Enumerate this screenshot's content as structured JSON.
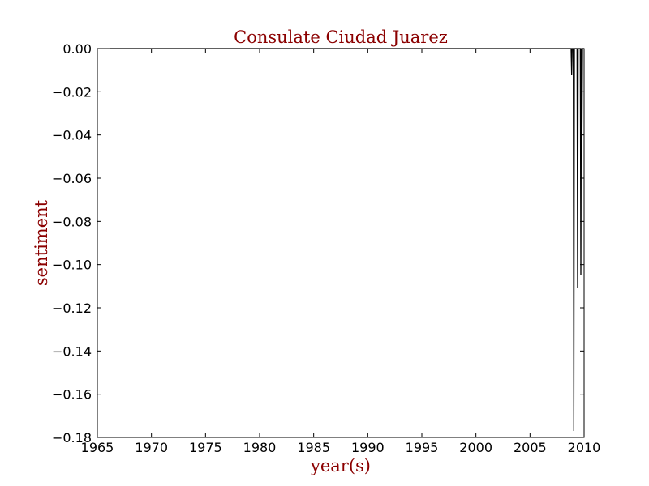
{
  "chart_data": {
    "type": "line",
    "title": "Consulate Ciudad Juarez",
    "xlabel": "year(s)",
    "ylabel": "sentiment",
    "xlim": [
      1965,
      2010
    ],
    "ylim": [
      -0.18,
      0.0
    ],
    "xticks": [
      "1965",
      "1970",
      "1975",
      "1980",
      "1985",
      "1990",
      "1995",
      "2000",
      "2005",
      "2010"
    ],
    "yticks": [
      "0.00",
      "−0.02",
      "−0.04",
      "−0.06",
      "−0.08",
      "−0.10",
      "−0.12",
      "−0.14",
      "−0.16",
      "−0.18"
    ],
    "ytick_values": [
      0.0,
      -0.02,
      -0.04,
      -0.06,
      -0.08,
      -0.1,
      -0.12,
      -0.14,
      -0.16,
      -0.18
    ],
    "grid": false,
    "series": [
      {
        "color": "#000000",
        "x": [
          1966.2,
          2008.8,
          2008.85,
          2008.9,
          2009.0,
          2009.05,
          2009.1,
          2009.15,
          2009.2,
          2009.25,
          2009.35,
          2009.4,
          2009.45,
          2009.5,
          2009.55,
          2009.65,
          2009.7,
          2009.75,
          2009.8,
          2009.85,
          2009.9,
          2009.95,
          2010.0
        ],
        "y": [
          0.0,
          0.0,
          -0.012,
          0.0,
          0.0,
          -0.177,
          0.0,
          0.0,
          0.0,
          0.0,
          0.0,
          -0.111,
          0.0,
          0.0,
          0.0,
          0.0,
          -0.105,
          0.0,
          -0.04,
          0.0,
          0.0,
          0.0,
          0.0
        ]
      }
    ]
  }
}
